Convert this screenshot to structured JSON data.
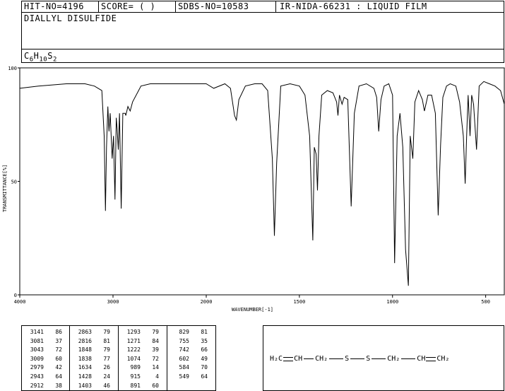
{
  "header": {
    "hit_no": "HIT-NO=4196",
    "score": "SCORE=  (  )",
    "sdbs_no": "SDBS-NO=10583",
    "ir_nida": "IR-NIDA-66231 : LIQUID FILM",
    "compound_name": "DIALLYL DISULFIDE",
    "formula_base": "C",
    "formula_parts": [
      "C",
      "6",
      "H",
      "10",
      "S",
      "2"
    ]
  },
  "chart_data": {
    "type": "line",
    "xlabel": "WAVENUMBER[-1]",
    "ylabel": "TRANSMITTANCE[%]",
    "xlim": [
      4000,
      400
    ],
    "ylim": [
      0,
      100
    ],
    "x_ticks": [
      "4000",
      "3000",
      "2000",
      "1500",
      "1000",
      "500"
    ],
    "y_ticks": [
      "100",
      "50",
      "0"
    ],
    "x": [
      4000,
      3800,
      3500,
      3300,
      3200,
      3120,
      3095,
      3081,
      3070,
      3055,
      3043,
      3030,
      3009,
      2995,
      2979,
      2965,
      2955,
      2943,
      2930,
      2912,
      2895,
      2870,
      2863,
      2840,
      2816,
      2790,
      2700,
      2600,
      2400,
      2200,
      2000,
      1960,
      1900,
      1870,
      1848,
      1838,
      1825,
      1790,
      1740,
      1700,
      1670,
      1645,
      1634,
      1622,
      1600,
      1550,
      1500,
      1470,
      1445,
      1428,
      1420,
      1410,
      1403,
      1395,
      1380,
      1350,
      1320,
      1300,
      1293,
      1285,
      1271,
      1260,
      1240,
      1222,
      1205,
      1180,
      1140,
      1100,
      1085,
      1074,
      1062,
      1045,
      1020,
      1000,
      989,
      975,
      960,
      945,
      930,
      915,
      905,
      891,
      880,
      860,
      840,
      829,
      810,
      790,
      770,
      755,
      742,
      730,
      710,
      690,
      660,
      640,
      620,
      610,
      602,
      594,
      584,
      575,
      565,
      549,
      535,
      510,
      480,
      450,
      420,
      400
    ],
    "y": [
      91,
      92,
      93,
      93,
      92,
      90,
      70,
      37,
      65,
      83,
      72,
      80,
      60,
      70,
      42,
      78,
      73,
      64,
      80,
      38,
      80,
      80,
      79,
      83,
      81,
      85,
      92,
      93,
      93,
      93,
      93,
      91,
      93,
      91,
      79,
      77,
      86,
      92,
      93,
      93,
      90,
      60,
      26,
      58,
      92,
      93,
      92,
      88,
      70,
      24,
      65,
      62,
      46,
      70,
      88,
      90,
      89,
      85,
      79,
      88,
      84,
      87,
      86,
      39,
      80,
      92,
      93,
      91,
      87,
      72,
      86,
      92,
      93,
      88,
      14,
      70,
      80,
      65,
      20,
      4,
      70,
      60,
      85,
      90,
      86,
      81,
      88,
      88,
      80,
      35,
      66,
      87,
      92,
      93,
      92,
      85,
      70,
      49,
      70,
      88,
      70,
      88,
      84,
      64,
      92,
      94,
      93,
      92,
      90,
      84
    ]
  },
  "peak_table": [
    [
      [
        "3141",
        "86"
      ],
      [
        "3081",
        "37"
      ],
      [
        "3043",
        "72"
      ],
      [
        "3009",
        "60"
      ],
      [
        "2979",
        "42"
      ],
      [
        "2943",
        "64"
      ],
      [
        "2912",
        "38"
      ]
    ],
    [
      [
        "2863",
        "79"
      ],
      [
        "2816",
        "81"
      ],
      [
        "1848",
        "79"
      ],
      [
        "1838",
        "77"
      ],
      [
        "1634",
        "26"
      ],
      [
        "1428",
        "24"
      ],
      [
        "1403",
        "46"
      ]
    ],
    [
      [
        "1293",
        "79"
      ],
      [
        "1271",
        "84"
      ],
      [
        "1222",
        "39"
      ],
      [
        "1074",
        "72"
      ],
      [
        "989",
        "14"
      ],
      [
        "915",
        "4"
      ],
      [
        "891",
        "60"
      ]
    ],
    [
      [
        "829",
        "81"
      ],
      [
        "755",
        "35"
      ],
      [
        "742",
        "66"
      ],
      [
        "602",
        "49"
      ],
      [
        "584",
        "70"
      ],
      [
        "549",
        "64"
      ],
      [
        "",
        ""
      ]
    ]
  ],
  "structure": {
    "h2c": "H₂C",
    "ch1": "CH",
    "ch2a": "CH₂",
    "s1": "S",
    "s2": "S",
    "ch2b": "CH₂",
    "ch3": "CH",
    "ch2c": "CH₂"
  }
}
